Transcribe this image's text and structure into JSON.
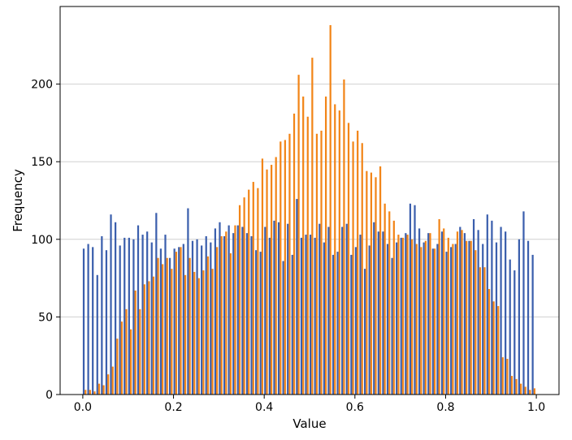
{
  "chart_data": {
    "type": "bar",
    "title": "",
    "xlabel": "Value",
    "ylabel": "Frequency",
    "xlim": [
      -0.05,
      1.05
    ],
    "ylim": [
      0,
      250
    ],
    "xticks": [
      "0.0",
      "0.2",
      "0.4",
      "0.6",
      "0.8",
      "1.0"
    ],
    "yticks": [
      "0",
      "50",
      "100",
      "150",
      "200"
    ],
    "grid": "horizontal",
    "bin_width": 0.01,
    "bin_starts": [
      0.0,
      0.01,
      0.02,
      0.03,
      0.04,
      0.05,
      0.06,
      0.07,
      0.08,
      0.09,
      0.1,
      0.11,
      0.12,
      0.13,
      0.14,
      0.15,
      0.16,
      0.17,
      0.18,
      0.19,
      0.2,
      0.21,
      0.22,
      0.23,
      0.24,
      0.25,
      0.26,
      0.27,
      0.28,
      0.29,
      0.3,
      0.31,
      0.32,
      0.33,
      0.34,
      0.35,
      0.36,
      0.37,
      0.38,
      0.39,
      0.4,
      0.41,
      0.42,
      0.43,
      0.44,
      0.45,
      0.46,
      0.47,
      0.48,
      0.49,
      0.5,
      0.51,
      0.52,
      0.53,
      0.54,
      0.55,
      0.56,
      0.57,
      0.58,
      0.59,
      0.6,
      0.61,
      0.62,
      0.63,
      0.64,
      0.65,
      0.66,
      0.67,
      0.68,
      0.69,
      0.7,
      0.71,
      0.72,
      0.73,
      0.74,
      0.75,
      0.76,
      0.77,
      0.78,
      0.79,
      0.8,
      0.81,
      0.82,
      0.83,
      0.84,
      0.85,
      0.86,
      0.87,
      0.88,
      0.89,
      0.9,
      0.91,
      0.92,
      0.93,
      0.94,
      0.95,
      0.96,
      0.97,
      0.98,
      0.99
    ],
    "series": [
      {
        "color": "#3b5fad",
        "values": [
          94,
          97,
          95,
          77,
          102,
          93,
          116,
          111,
          96,
          101,
          101,
          100,
          109,
          103,
          105,
          98,
          117,
          94,
          103,
          88,
          94,
          95,
          97,
          120,
          99,
          100,
          96,
          102,
          98,
          107,
          111,
          102,
          109,
          104,
          109,
          108,
          104,
          102,
          93,
          92,
          108,
          101,
          112,
          111,
          86,
          110,
          90,
          126,
          101,
          103,
          103,
          101,
          110,
          98,
          108,
          90,
          92,
          108,
          110,
          90,
          95,
          103,
          81,
          96,
          111,
          105,
          105,
          97,
          88,
          98,
          101,
          104,
          123,
          122,
          107,
          98,
          104,
          94,
          97,
          105,
          92,
          95,
          97,
          108,
          104,
          99,
          113,
          106,
          97,
          116,
          112,
          98,
          108,
          105,
          87,
          80,
          100,
          118,
          99,
          90
        ]
      },
      {
        "color": "#f28518",
        "values": [
          3,
          3,
          2,
          7,
          6,
          13,
          18,
          36,
          47,
          55,
          42,
          67,
          55,
          71,
          73,
          76,
          88,
          84,
          88,
          81,
          92,
          95,
          77,
          88,
          79,
          75,
          80,
          89,
          81,
          95,
          102,
          105,
          91,
          109,
          122,
          127,
          132,
          137,
          133,
          152,
          145,
          148,
          153,
          163,
          164,
          168,
          181,
          206,
          192,
          179,
          217,
          168,
          170,
          192,
          238,
          187,
          183,
          203,
          175,
          163,
          170,
          162,
          144,
          143,
          140,
          147,
          123,
          118,
          112,
          103,
          101,
          103,
          100,
          97,
          95,
          99,
          104,
          94,
          113,
          107,
          101,
          97,
          105,
          106,
          99,
          99,
          93,
          82,
          82,
          68,
          60,
          57,
          24,
          23,
          12,
          10,
          7,
          5,
          3,
          4
        ]
      }
    ]
  }
}
